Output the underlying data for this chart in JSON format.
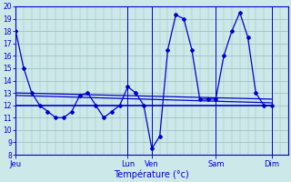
{
  "title": "",
  "xlabel": "Température (°c)",
  "ylabel": "",
  "ylim": [
    8,
    20
  ],
  "yticks": [
    8,
    9,
    10,
    11,
    12,
    13,
    14,
    15,
    16,
    17,
    18,
    19,
    20
  ],
  "background_color": "#cce8e8",
  "line_color": "#0000cc",
  "grid_color": "#99bbbb",
  "x_day_labels": [
    "Jeu",
    "Lun",
    "Ven",
    "Sam",
    "Dim"
  ],
  "x_day_positions": [
    0,
    14,
    17,
    25,
    32
  ],
  "xlim": [
    0,
    34
  ],
  "line_main": {
    "x": [
      0,
      1,
      2,
      3,
      4,
      5,
      6,
      7,
      8,
      9,
      10,
      11,
      12,
      13,
      14,
      15,
      16,
      17,
      18,
      19,
      20,
      21,
      22,
      23,
      24,
      25,
      26,
      27,
      28,
      29,
      30,
      31,
      32
    ],
    "y": [
      18,
      15,
      13,
      12,
      11.5,
      11,
      11,
      11.5,
      12.8,
      13,
      12,
      11,
      11.5,
      12,
      13.5,
      13,
      12,
      8.5,
      9.5,
      16.5,
      19.3,
      19,
      16.5,
      12.5,
      12.5,
      12.5,
      16,
      18,
      19.5,
      17.5,
      13,
      12,
      12
    ]
  },
  "line_trend1": {
    "x": [
      0,
      32
    ],
    "y": [
      13,
      12.5
    ]
  },
  "line_flat12": {
    "x": [
      0,
      32
    ],
    "y": [
      12,
      12
    ]
  },
  "line_trend2": {
    "x": [
      0,
      32
    ],
    "y": [
      12.8,
      12.2
    ]
  },
  "vlines": [
    0,
    14,
    17,
    25,
    32
  ]
}
